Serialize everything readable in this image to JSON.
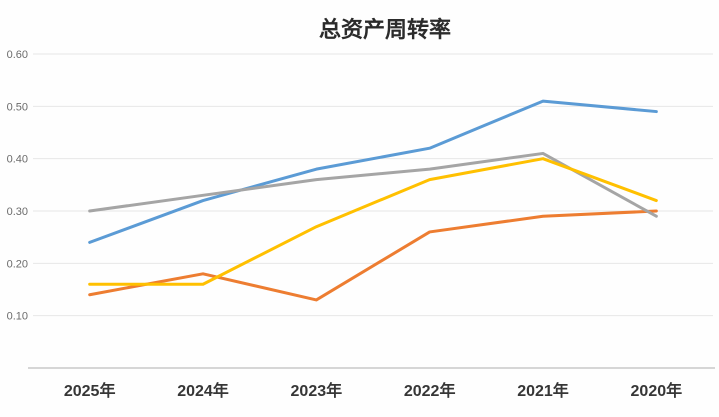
{
  "chart_data": {
    "type": "line",
    "title": "总资产周转率",
    "categories": [
      "2025年",
      "2024年",
      "2023年",
      "2022年",
      "2021年",
      "2020年"
    ],
    "series": [
      {
        "name": "blue",
        "color": "#5B9BD5",
        "values": [
          0.24,
          0.32,
          0.38,
          0.42,
          0.51,
          0.49
        ]
      },
      {
        "name": "orange",
        "color": "#ED7D31",
        "values": [
          0.14,
          0.18,
          0.13,
          0.26,
          0.29,
          0.3
        ]
      },
      {
        "name": "gray",
        "color": "#A5A5A5",
        "values": [
          0.3,
          0.33,
          0.36,
          0.38,
          0.41,
          0.29
        ]
      },
      {
        "name": "gold",
        "color": "#FFC000",
        "values": [
          0.16,
          0.16,
          0.27,
          0.36,
          0.4,
          0.32
        ]
      }
    ],
    "y_axis": {
      "min": 0.0,
      "max": 0.6,
      "step": 0.1,
      "tick_labels": [
        "0.10",
        "0.20",
        "0.30",
        "0.40",
        "0.50",
        "0.60"
      ]
    },
    "grid": true,
    "legend": "none",
    "colors": {
      "gridline": "#e7e7e7",
      "axis_line": "#c9c9c9",
      "title_text": "#2b2b2b",
      "tick_text": "#6b6b6b",
      "category_text": "#363636"
    }
  }
}
